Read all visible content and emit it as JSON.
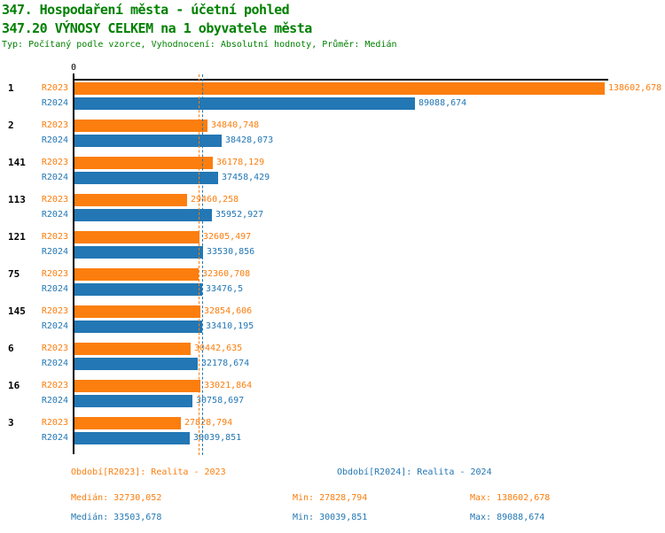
{
  "header": {
    "title": "347. Hospodaření města - účetní pohled",
    "subtitle": "347.20 VÝNOSY CELKEM na 1 obyvatele města",
    "meta": "Typ: Počítaný podle vzorce, Vyhodnocení: Absolutní hodnoty, Průměr: Medián"
  },
  "colors": {
    "header_green": "#008000",
    "r2023_orange": "#fb7e0e",
    "r2024_blue": "#2377b4",
    "axis_black": "#000000"
  },
  "chart_data": {
    "type": "bar",
    "orientation": "horizontal",
    "title": "347.20 VÝNOSY CELKEM na 1 obyvatele města",
    "xlabel": "",
    "ylabel": "",
    "xlim": [
      0,
      138602.678
    ],
    "axis_zero_label": "0",
    "grid": false,
    "categories": [
      "1",
      "2",
      "141",
      "113",
      "121",
      "75",
      "145",
      "6",
      "16",
      "3"
    ],
    "series": [
      {
        "name": "R2023",
        "color": "#fb7e0e",
        "values": [
          138602.678,
          34840.748,
          36178.129,
          29460.258,
          32605.497,
          32360.708,
          32854.606,
          30442.635,
          33021.864,
          27828.794
        ],
        "labels": [
          "138602,678",
          "34840,748",
          "36178,129",
          "29460,258",
          "32605,497",
          "32360,708",
          "32854,606",
          "30442,635",
          "33021,864",
          "27828,794"
        ],
        "median_value": 32730.052,
        "median_label": "32730,052"
      },
      {
        "name": "R2024",
        "color": "#2377b4",
        "values": [
          89088.674,
          38428.073,
          37458.429,
          35952.927,
          33530.856,
          33476.5,
          33410.195,
          32178.674,
          30758.697,
          30039.851
        ],
        "labels": [
          "89088,674",
          "38428,073",
          "37458,429",
          "35952,927",
          "33530,856",
          "33476,5",
          "33410,195",
          "32178,674",
          "30758,697",
          "30039,851"
        ],
        "median_value": 33503.678,
        "median_label": "33503,678"
      }
    ]
  },
  "footer": {
    "r2023": {
      "period": "Období[R2023]: Realita - 2023",
      "median": "Medián: 32730,052",
      "min": "Min: 27828,794",
      "max": "Max: 138602,678"
    },
    "r2024": {
      "period": "Období[R2024]: Realita - 2024",
      "median": "Medián: 33503,678",
      "min": "Min: 30039,851",
      "max": "Max: 89088,674"
    }
  }
}
